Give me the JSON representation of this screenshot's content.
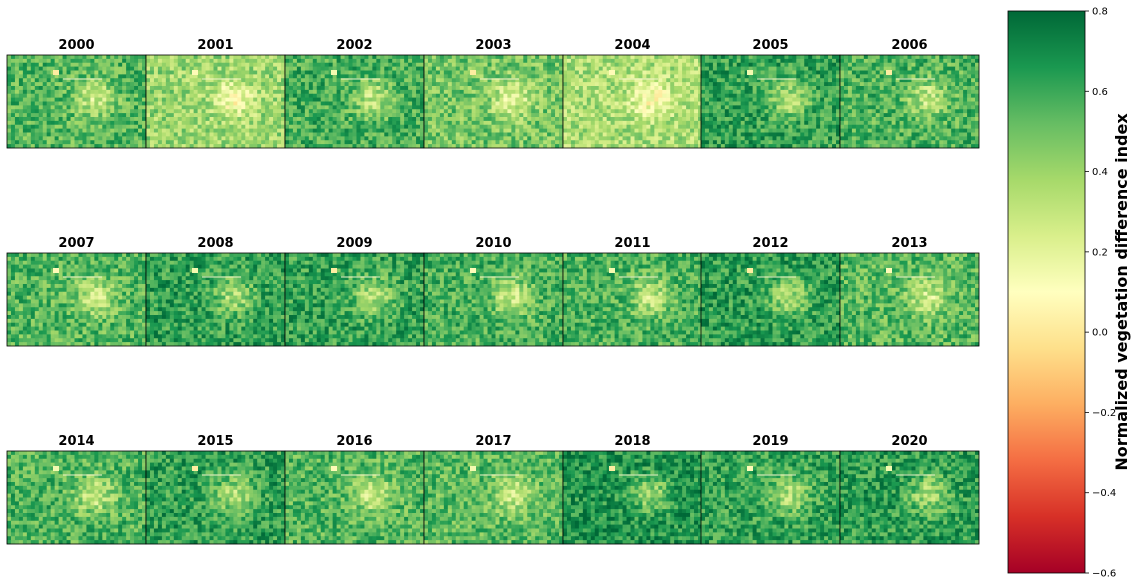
{
  "chart_data": {
    "type": "heatmap",
    "panels": [
      "2000",
      "2001",
      "2002",
      "2003",
      "2004",
      "2005",
      "2006",
      "2007",
      "2008",
      "2009",
      "2010",
      "2011",
      "2012",
      "2013",
      "2014",
      "2015",
      "2016",
      "2017",
      "2018",
      "2019",
      "2020"
    ],
    "grid": {
      "rows": 3,
      "cols": 7
    },
    "colorbar": {
      "label": "Normalized vegetation difference index",
      "colormap": "RdYlGn",
      "vmin": -0.6,
      "vmax": 0.8,
      "ticks": [
        -0.6,
        -0.4,
        -0.2,
        0.0,
        0.2,
        0.4,
        0.6,
        0.8
      ],
      "tick_labels": [
        "−0.6",
        "−0.4",
        "−0.2",
        "0.0",
        "0.2",
        "0.4",
        "0.6",
        "0.8"
      ]
    },
    "panel_mean_ndvi": [
      0.55,
      0.4,
      0.58,
      0.48,
      0.36,
      0.62,
      0.56,
      0.55,
      0.63,
      0.62,
      0.57,
      0.57,
      0.64,
      0.54,
      0.56,
      0.63,
      0.55,
      0.54,
      0.67,
      0.62,
      0.64
    ],
    "axes_visible": false
  },
  "colors": {
    "rdylgn": [
      "#a50026",
      "#d73027",
      "#f46d43",
      "#fdae61",
      "#fee08b",
      "#ffffbf",
      "#d9ef8b",
      "#a6d96a",
      "#66bd63",
      "#1a9850",
      "#006837"
    ]
  }
}
